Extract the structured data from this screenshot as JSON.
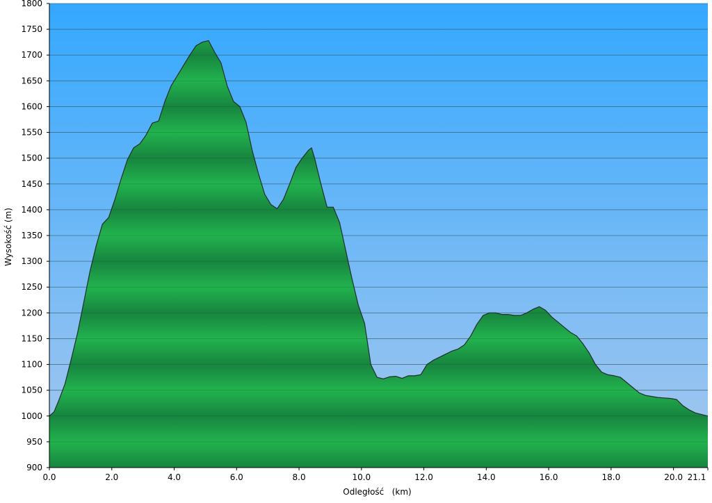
{
  "chart_data": {
    "type": "area",
    "title": "",
    "xlabel": "Odległość   (km)",
    "ylabel": "Wysokość (m)",
    "xlim": [
      0,
      21.1
    ],
    "ylim": [
      900,
      1800
    ],
    "x_ticks": [
      "0.0",
      "2.0",
      "4.0",
      "6.0",
      "8.0",
      "10.0",
      "12.0",
      "14.0",
      "16.0",
      "18.0",
      "20.0",
      "21.1"
    ],
    "y_ticks": [
      "900",
      "950",
      "1000",
      "1050",
      "1100",
      "1150",
      "1200",
      "1250",
      "1300",
      "1350",
      "1400",
      "1450",
      "1500",
      "1550",
      "1600",
      "1650",
      "1700",
      "1750",
      "1800"
    ],
    "grid": "horizontal",
    "colors": {
      "sky_top": "#34a8ff",
      "sky_bottom": "#a8c8ee",
      "fill_dark": "#17853f",
      "fill_light": "#22b24e",
      "outline": "#1f2f2a"
    },
    "series": [
      {
        "x": [
          0.0,
          0.15,
          0.3,
          0.5,
          0.7,
          0.9,
          1.1,
          1.3,
          1.5,
          1.7,
          1.9,
          2.1,
          2.3,
          2.5,
          2.7,
          2.9,
          3.1,
          3.3,
          3.5,
          3.7,
          3.9,
          4.1,
          4.3,
          4.5,
          4.7,
          4.9,
          5.1,
          5.3,
          5.5,
          5.7,
          5.9,
          6.1,
          6.3,
          6.5,
          6.7,
          6.9,
          7.1,
          7.3,
          7.5,
          7.7,
          7.9,
          8.1,
          8.3,
          8.4,
          8.5,
          8.7,
          8.9,
          9.1,
          9.3,
          9.5,
          9.7,
          9.9,
          10.1,
          10.3,
          10.5,
          10.7,
          10.9,
          11.1,
          11.3,
          11.5,
          11.7,
          11.9,
          12.1,
          12.3,
          12.5,
          12.7,
          12.9,
          13.1,
          13.3,
          13.5,
          13.7,
          13.9,
          14.1,
          14.3,
          14.5,
          14.7,
          14.9,
          15.1,
          15.3,
          15.5,
          15.7,
          15.9,
          16.1,
          16.3,
          16.5,
          16.7,
          16.9,
          17.1,
          17.3,
          17.5,
          17.7,
          17.9,
          18.1,
          18.3,
          18.5,
          18.7,
          18.9,
          19.1,
          19.3,
          19.5,
          19.7,
          19.9,
          20.1,
          20.3,
          20.5,
          20.7,
          20.9,
          21.1
        ],
        "y": [
          1000,
          1008,
          1030,
          1062,
          1110,
          1160,
          1220,
          1280,
          1330,
          1372,
          1385,
          1420,
          1460,
          1497,
          1520,
          1528,
          1545,
          1568,
          1572,
          1610,
          1640,
          1660,
          1680,
          1700,
          1718,
          1725,
          1728,
          1705,
          1685,
          1640,
          1610,
          1600,
          1570,
          1515,
          1470,
          1430,
          1410,
          1402,
          1420,
          1450,
          1482,
          1500,
          1515,
          1520,
          1500,
          1450,
          1405,
          1405,
          1375,
          1320,
          1265,
          1215,
          1180,
          1100,
          1075,
          1072,
          1076,
          1077,
          1073,
          1078,
          1078,
          1080,
          1100,
          1108,
          1114,
          1120,
          1126,
          1130,
          1138,
          1155,
          1178,
          1195,
          1200,
          1200,
          1197,
          1197,
          1195,
          1195,
          1200,
          1207,
          1212,
          1205,
          1192,
          1182,
          1172,
          1162,
          1155,
          1140,
          1122,
          1100,
          1085,
          1080,
          1078,
          1075,
          1065,
          1055,
          1045,
          1040,
          1038,
          1036,
          1035,
          1034,
          1032,
          1020,
          1012,
          1006,
          1003,
          1000
        ]
      }
    ]
  }
}
